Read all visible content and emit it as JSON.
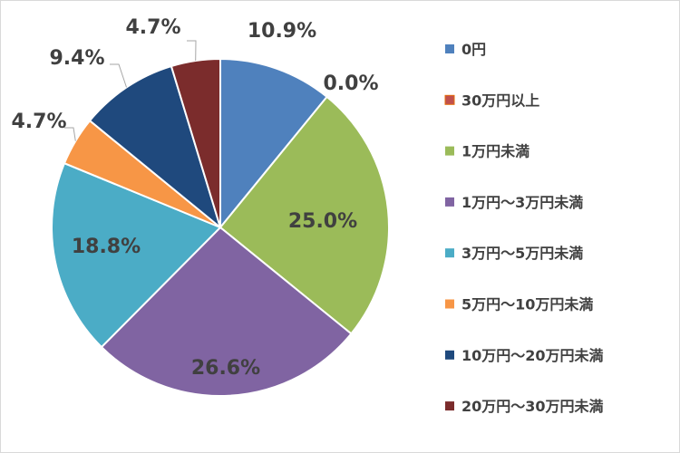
{
  "chart_data": {
    "type": "pie",
    "title": "",
    "categories": [
      "0円",
      "30万円以上",
      "1万円未満",
      "1万円～3万円未満",
      "3万円～5万円未満",
      "5万円～10万円未満",
      "10万円～20万円未満",
      "20万円～30万円未満"
    ],
    "values": [
      10.9,
      0.0,
      25.0,
      26.6,
      18.8,
      4.7,
      9.4,
      4.7
    ],
    "data_labels": [
      "10.9%",
      "0.0%",
      "25.0%",
      "26.6%",
      "18.8%",
      "4.7%",
      "9.4%",
      "4.7%"
    ],
    "colors": [
      "#4F81BD",
      "#C0504D",
      "#9BBB59",
      "#8064A2",
      "#4BACC6",
      "#F79646",
      "#1F497D",
      "#7B2C2C"
    ],
    "legend_position": "right",
    "start_angle": "12 o'clock",
    "direction": "clockwise"
  }
}
